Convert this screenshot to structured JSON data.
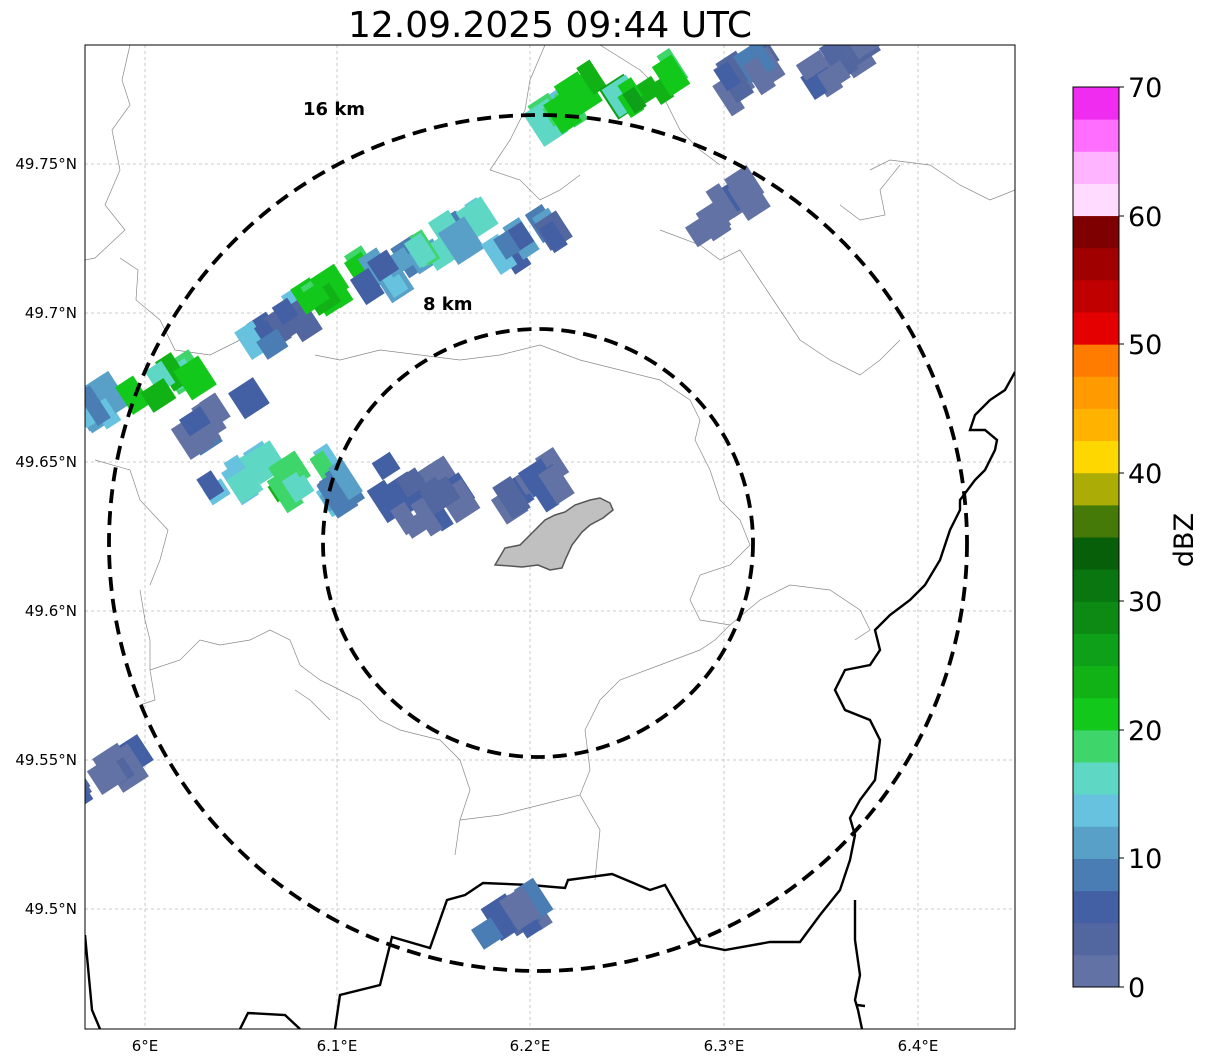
{
  "title": "12.09.2025 09:44 UTC",
  "map": {
    "lon_labels": [
      "6°E",
      "6.1°E",
      "6.2°E",
      "6.3°E",
      "6.4°E"
    ],
    "lat_labels": [
      "49.75°N",
      "49.7°N",
      "49.65°N",
      "49.6°N",
      "49.55°N",
      "49.5°N"
    ],
    "lon_range": [
      5.97,
      6.45
    ],
    "lat_range": [
      49.46,
      49.79
    ],
    "grid": true,
    "rings": [
      {
        "label": "16 km",
        "radius_km": 16
      },
      {
        "label": "8 km",
        "radius_km": 8
      }
    ],
    "radar_site": {
      "lon": 6.2,
      "lat": 49.623
    }
  },
  "colorbar": {
    "label": "dBZ",
    "tick_labels": [
      "0",
      "10",
      "20",
      "30",
      "40",
      "50",
      "60",
      "70"
    ],
    "min": 0,
    "max": 70,
    "step": 2.5,
    "colors": [
      "#6272a4",
      "#52669f",
      "#4460a4",
      "#4a7db3",
      "#58a0c8",
      "#66c2de",
      "#5ed8c4",
      "#3ed66b",
      "#12c81a",
      "#10b216",
      "#0fa01a",
      "#0c8a14",
      "#0a760f",
      "#075f0a",
      "#467a08",
      "#acac06",
      "#ffd700",
      "#ffb300",
      "#ff9a00",
      "#ff7c00",
      "#e40000",
      "#c00000",
      "#a00000",
      "#7f0000",
      "#ffdcff",
      "#ffb4ff",
      "#ff6eff",
      "#f02cf0"
    ]
  },
  "echoes": [
    {
      "lon": 5.98,
      "lat": 49.67,
      "dbz": 12
    },
    {
      "lon": 6.01,
      "lat": 49.675,
      "dbz": 20
    },
    {
      "lon": 6.04,
      "lat": 49.665,
      "dbz": 6
    },
    {
      "lon": 6.05,
      "lat": 49.645,
      "dbz": 12
    },
    {
      "lon": 6.08,
      "lat": 49.645,
      "dbz": 18
    },
    {
      "lon": 6.11,
      "lat": 49.645,
      "dbz": 10
    },
    {
      "lon": 6.14,
      "lat": 49.64,
      "dbz": 4
    },
    {
      "lon": 6.07,
      "lat": 49.695,
      "dbz": 8
    },
    {
      "lon": 6.1,
      "lat": 49.71,
      "dbz": 22
    },
    {
      "lon": 6.13,
      "lat": 49.715,
      "dbz": 12
    },
    {
      "lon": 6.16,
      "lat": 49.725,
      "dbz": 14
    },
    {
      "lon": 6.2,
      "lat": 49.725,
      "dbz": 8
    },
    {
      "lon": 6.22,
      "lat": 49.77,
      "dbz": 18
    },
    {
      "lon": 6.26,
      "lat": 49.775,
      "dbz": 22
    },
    {
      "lon": 6.31,
      "lat": 49.78,
      "dbz": 4
    },
    {
      "lon": 6.36,
      "lat": 49.785,
      "dbz": 2
    },
    {
      "lon": 6.3,
      "lat": 49.735,
      "dbz": 2
    },
    {
      "lon": 6.2,
      "lat": 49.64,
      "dbz": 2
    },
    {
      "lon": 6.15,
      "lat": 49.635,
      "dbz": 2
    },
    {
      "lon": 5.98,
      "lat": 49.545,
      "dbz": 2
    },
    {
      "lon": 6.19,
      "lat": 49.495,
      "dbz": 4
    }
  ]
}
